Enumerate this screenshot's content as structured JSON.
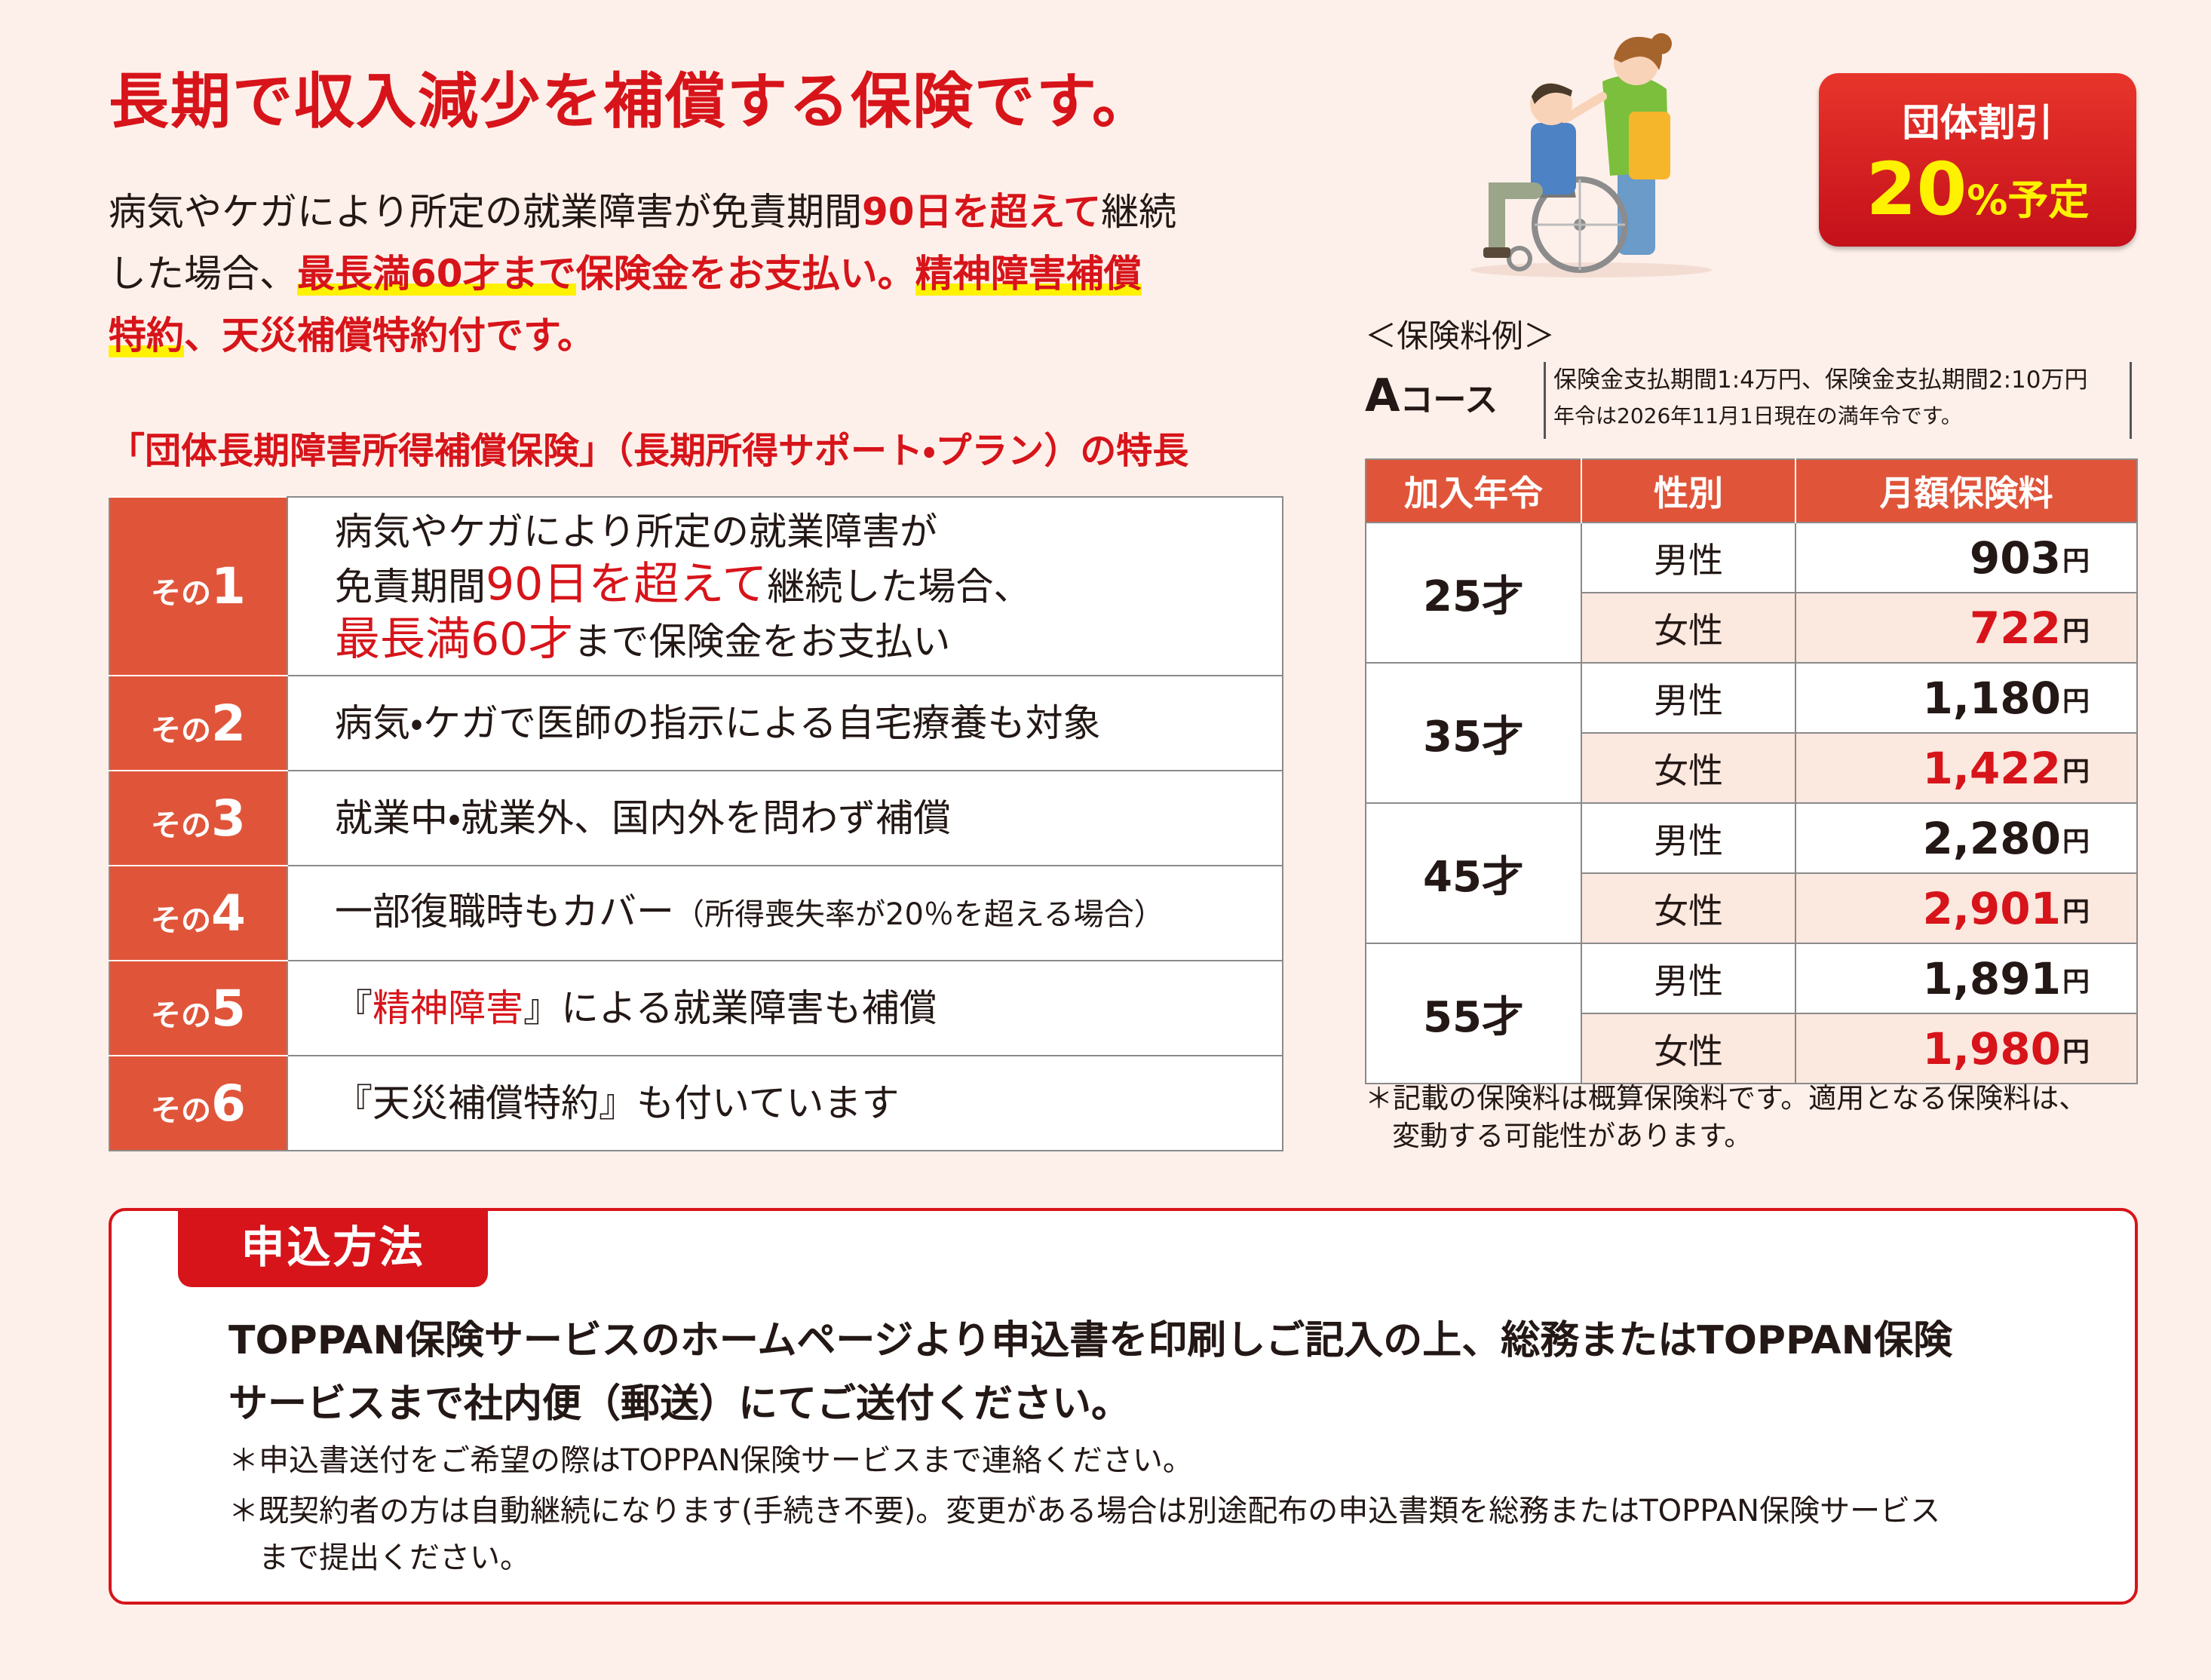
{
  "header": {
    "title": "長期で収入減少を補償する保険です。",
    "intro": [
      [
        {
          "text": "病気やケガにより所定の就業障害が免責期間"
        },
        {
          "text": "90日を超えて",
          "color": "#d7141a"
        },
        {
          "text": "継続"
        }
      ],
      [
        {
          "text": "した場合、"
        },
        {
          "text": "最長満60才まで",
          "color": "#d7141a",
          "marker": "#fff200"
        },
        {
          "text": "保険金をお支払い。",
          "color": "#d7141a"
        },
        {
          "text": "精神障害補償",
          "color": "#d7141a",
          "marker": "#fff200"
        }
      ],
      [
        {
          "text": "特約",
          "color": "#d7141a",
          "marker": "#fff200"
        },
        {
          "text": "、天災補償特約付です。",
          "color": "#d7141a"
        }
      ]
    ],
    "badge": {
      "label": "団体割引",
      "value": "20",
      "unit": "%予定"
    }
  },
  "features": {
    "title": "「団体長期障害所得補償保険」（長期所得サポート・プラン）の特長",
    "items": [
      {
        "prefix": "その",
        "number": "1",
        "text": [
          [
            {
              "text": "病気やケガにより所定の就業障害が"
            }
          ],
          [
            {
              "text": "免責期間"
            },
            {
              "text": "90日を超えて",
              "color": "#d7141a",
              "size": "large"
            },
            {
              "text": "継続した場合、"
            }
          ],
          [
            {
              "text": "最長満60才",
              "color": "#d7141a",
              "size": "large"
            },
            {
              "text": "まで保険金をお支払い"
            }
          ]
        ]
      },
      {
        "prefix": "その",
        "number": "2",
        "text": [
          [
            {
              "text": "病気・ケガで医師の指示による自宅療養も対象"
            }
          ]
        ]
      },
      {
        "prefix": "その",
        "number": "3",
        "text": [
          [
            {
              "text": "就業中・就業外、国内外を問わず補償"
            }
          ]
        ]
      },
      {
        "prefix": "その",
        "number": "4",
        "text": [
          [
            {
              "text": "一部復職時もカバー"
            },
            {
              "text": "（所得喪失率が20％を超える場合）",
              "size": "small"
            }
          ]
        ]
      },
      {
        "prefix": "その",
        "number": "5",
        "text": [
          [
            {
              "text": "『"
            },
            {
              "text": "精神障害",
              "color": "#d7141a"
            },
            {
              "text": "』による就業障害も補償"
            }
          ]
        ]
      },
      {
        "prefix": "その",
        "number": "6",
        "text": [
          [
            {
              "text": "『天災補償特約』も付いています"
            }
          ]
        ]
      }
    ]
  },
  "premium": {
    "heading": "＜保険料例＞",
    "course": {
      "letter": "A",
      "name": "コース"
    },
    "notes": [
      "保険金支払期間1:4万円、保険金支払期間2:10万円",
      "年令は2026年11月1日現在の満年令です。"
    ],
    "table": {
      "headers": [
        "加入年令",
        "性別",
        "月額保険料"
      ],
      "unit": "円",
      "groups": [
        {
          "age": "25才",
          "rows": [
            {
              "sex": "男性",
              "premium": "903"
            },
            {
              "sex": "女性",
              "premium": "722",
              "color": "#d7141a"
            }
          ]
        },
        {
          "age": "35才",
          "rows": [
            {
              "sex": "男性",
              "premium": "1,180"
            },
            {
              "sex": "女性",
              "premium": "1,422",
              "color": "#d7141a"
            }
          ]
        },
        {
          "age": "45才",
          "rows": [
            {
              "sex": "男性",
              "premium": "2,280"
            },
            {
              "sex": "女性",
              "premium": "2,901",
              "color": "#d7141a"
            }
          ]
        },
        {
          "age": "55才",
          "rows": [
            {
              "sex": "男性",
              "premium": "1,891"
            },
            {
              "sex": "女性",
              "premium": "1,980",
              "color": "#d7141a"
            }
          ]
        }
      ]
    },
    "footnote": [
      [
        {
          "text": "＊記載の保険料は概算保険料です。適用となる保険料は、"
        }
      ],
      [
        {
          "text": "変動する可能性があります。"
        }
      ]
    ]
  },
  "application": {
    "tab": "申込方法",
    "body": [
      [
        {
          "text": "TOPPAN保険サービスのホームページより申込書を印刷しご記入の上、総務またはTOPPAN保険"
        }
      ],
      [
        {
          "text": "サービスまで社内便（郵送）にてご送付ください。"
        }
      ]
    ],
    "notes": [
      [
        [
          {
            "text": "＊申込書送付をご希望の際はTOPPAN保険サービスまで連絡ください。"
          }
        ]
      ],
      [
        [
          {
            "text": "＊既契約者の方は自動継続になります(手続き不要)。変更がある場合は別途配布の申込書類を総務またはTOPPAN保険サービス"
          }
        ],
        [
          {
            "text": "まで提出ください。"
          }
        ]
      ]
    ]
  }
}
